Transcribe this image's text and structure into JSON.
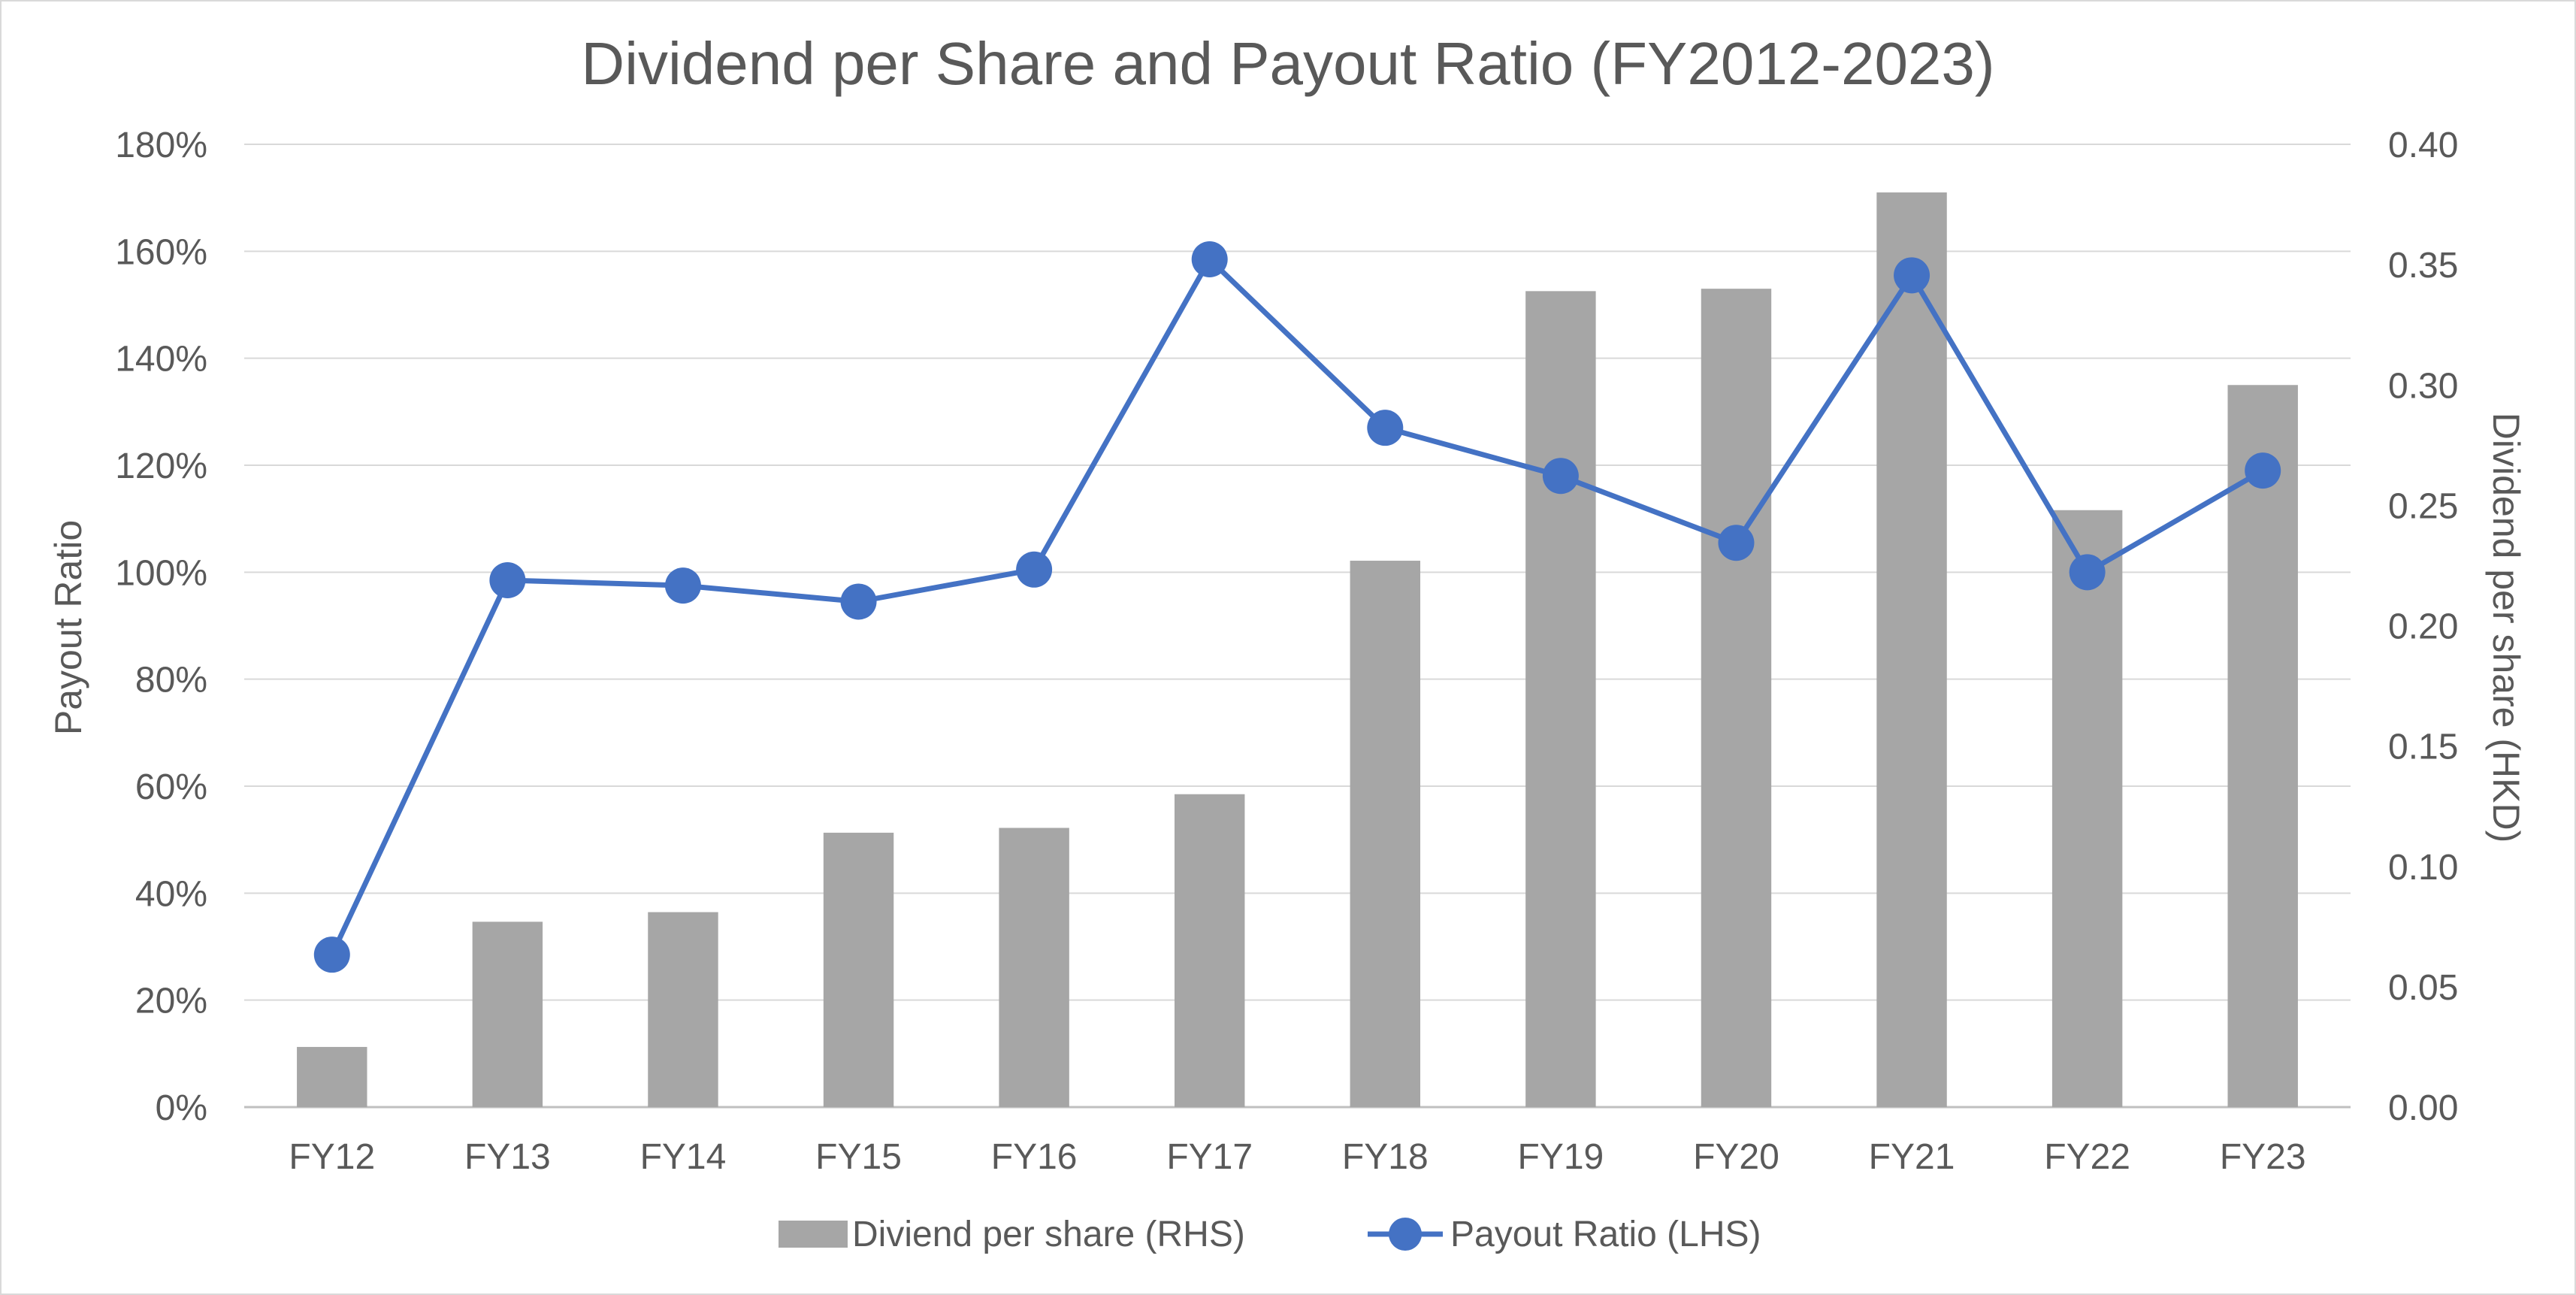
{
  "chart_data": {
    "type": "bar",
    "title": "Dividend per Share and Payout Ratio (FY2012-2023)",
    "categories": [
      "FY12",
      "FY13",
      "FY14",
      "FY15",
      "FY16",
      "FY17",
      "FY18",
      "FY19",
      "FY20",
      "FY21",
      "FY22",
      "FY23"
    ],
    "series": [
      {
        "name": "Diviend per share (RHS)",
        "type": "bar",
        "axis": "right",
        "color": "#a6a6a6",
        "values": [
          0.025,
          0.077,
          0.081,
          0.114,
          0.116,
          0.13,
          0.227,
          0.339,
          0.34,
          0.38,
          0.248,
          0.3
        ]
      },
      {
        "name": "Payout Ratio (LHS)",
        "type": "line",
        "axis": "left",
        "color": "#4472c4",
        "values": [
          28.5,
          98.5,
          97.5,
          94.5,
          100.5,
          158.5,
          127,
          118,
          105.5,
          155.5,
          100,
          119
        ]
      }
    ],
    "y_left": {
      "label": "Payout Ratio",
      "min": 0,
      "max": 180,
      "step": 20,
      "tick_labels": [
        "0%",
        "20%",
        "40%",
        "60%",
        "80%",
        "100%",
        "120%",
        "140%",
        "160%",
        "180%"
      ]
    },
    "y_right": {
      "label": "Dividend per share (HKD)",
      "min": 0,
      "max": 0.4,
      "step": 0.05,
      "tick_labels": [
        "0.00",
        "0.05",
        "0.10",
        "0.15",
        "0.20",
        "0.25",
        "0.30",
        "0.35",
        "0.40"
      ]
    },
    "grid": true,
    "legend_position": "bottom"
  }
}
